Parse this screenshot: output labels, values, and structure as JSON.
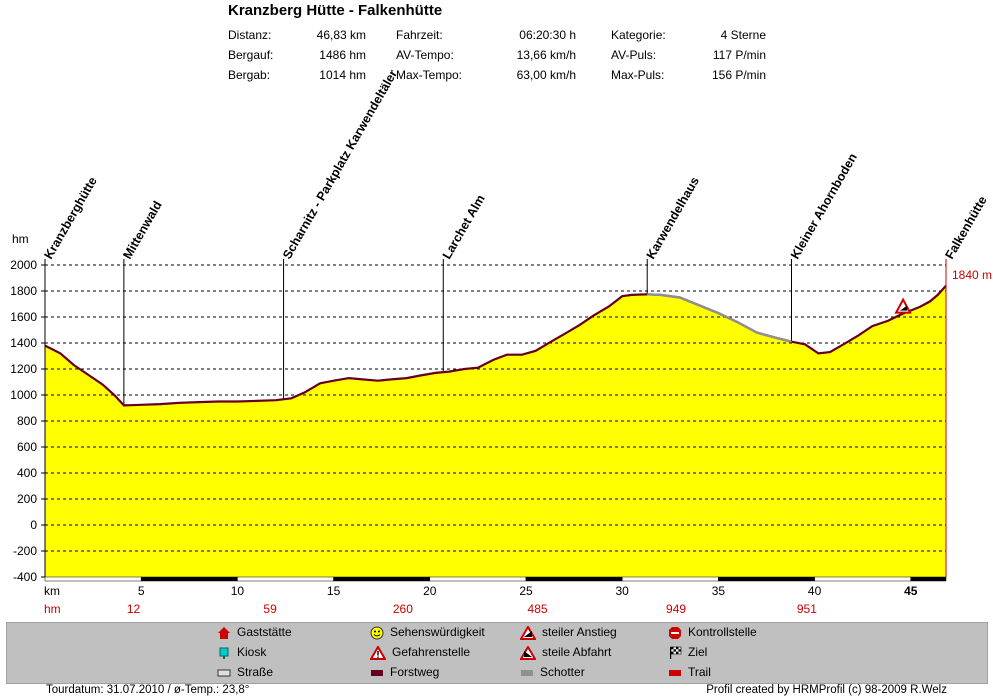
{
  "header": {
    "title": "Kranzberg Hütte - Falkenhütte",
    "stats": [
      {
        "label": "Distanz:",
        "value": "46,83 km"
      },
      {
        "label": "Bergauf:",
        "value": "1486 hm"
      },
      {
        "label": "Bergab:",
        "value": "1014 hm"
      },
      {
        "label": "Fahrzeit:",
        "value": "06:20:30 h"
      },
      {
        "label": "AV-Tempo:",
        "value": "13,66 km/h"
      },
      {
        "label": "Max-Tempo:",
        "value": "63,00 km/h"
      },
      {
        "label": "Kategorie:",
        "value": "4 Sterne"
      },
      {
        "label": "AV-Puls:",
        "value": "117 P/min"
      },
      {
        "label": "Max-Puls:",
        "value": "156 P/min"
      }
    ]
  },
  "chart_data": {
    "type": "area",
    "ylabel": "hm",
    "xlabel": "km",
    "xlim": [
      0,
      46.83
    ],
    "ylim": [
      -400,
      2000
    ],
    "ytick_values": [
      2000,
      1800,
      1600,
      1400,
      1200,
      1000,
      800,
      600,
      400,
      200,
      0,
      -200,
      -400
    ],
    "ytick_labels": [
      "2000",
      "1800",
      "1600",
      "1400",
      "1200",
      "1000",
      "800",
      "600",
      "400",
      "200",
      "0",
      "-200",
      "-400"
    ],
    "xtick_values": [
      5,
      10,
      15,
      20,
      25,
      30,
      35,
      40,
      45
    ],
    "xtick_labels": [
      "5",
      "10",
      "15",
      "20",
      "25",
      "30",
      "35",
      "40",
      "45"
    ],
    "grid": true,
    "end_value_label": "1840 m",
    "fill_color": "#ffff00",
    "line_color": "#660022",
    "gravel_color": "#909090",
    "x": [
      0,
      0.8,
      1.5,
      2.3,
      3.0,
      3.6,
      4.1,
      5,
      6,
      7,
      8,
      9,
      10,
      11,
      12,
      12.8,
      13.5,
      14.3,
      15,
      15.8,
      16.5,
      17.3,
      18,
      18.8,
      19.5,
      20.3,
      21,
      21.8,
      22.5,
      23.3,
      24,
      24.8,
      25.5,
      26.3,
      27,
      27.8,
      28.5,
      29.3,
      30,
      30.5,
      31.3,
      32,
      33,
      34,
      35,
      36,
      37,
      38,
      38.8,
      39.5,
      40.2,
      40.8,
      41.5,
      42.3,
      43,
      43.8,
      44.5,
      45,
      45.5,
      46,
      46.4,
      46.83
    ],
    "y": [
      1380,
      1320,
      1230,
      1150,
      1080,
      1000,
      920,
      925,
      930,
      940,
      945,
      950,
      950,
      955,
      960,
      975,
      1020,
      1090,
      1110,
      1130,
      1120,
      1110,
      1120,
      1130,
      1150,
      1170,
      1180,
      1200,
      1210,
      1270,
      1310,
      1310,
      1340,
      1410,
      1470,
      1540,
      1610,
      1680,
      1760,
      1770,
      1775,
      1770,
      1750,
      1690,
      1630,
      1560,
      1480,
      1440,
      1410,
      1390,
      1320,
      1330,
      1390,
      1460,
      1530,
      1570,
      1620,
      1650,
      1680,
      1720,
      1770,
      1840
    ],
    "gravel_segments": [
      [
        31.3,
        38.8
      ]
    ],
    "waypoints": [
      {
        "name": "Kranzberghütte",
        "km": 0
      },
      {
        "name": "Mittenwald",
        "km": 4.1
      },
      {
        "name": "Scharnitz - Parkplatz Karwendeltäler",
        "km": 12.4
      },
      {
        "name": "Larchet Alm",
        "km": 20.7
      },
      {
        "name": "Karwendelhaus",
        "km": 31.3
      },
      {
        "name": "Kleiner Ahornboden",
        "km": 38.8
      },
      {
        "name": "Falkenhütte",
        "km": 46.83
      }
    ],
    "hazard_marker_km": 44.6,
    "hm_row": [
      {
        "km": 4.6,
        "label": "12"
      },
      {
        "km": 11.7,
        "label": "59"
      },
      {
        "km": 18.6,
        "label": "260"
      },
      {
        "km": 25.6,
        "label": "485"
      },
      {
        "km": 32.8,
        "label": "949"
      },
      {
        "km": 39.6,
        "label": "951"
      }
    ],
    "km_row_label": "km",
    "hm_row_label": "hm"
  },
  "legend": {
    "items": [
      {
        "label": "Gaststätte",
        "icon": "house-icon",
        "color": "#cc0000"
      },
      {
        "label": "Kiosk",
        "icon": "kiosk-icon",
        "color": "#00cccc"
      },
      {
        "label": "Straße",
        "icon": "road-swatch",
        "color": "#e0e0e0"
      },
      {
        "label": "Sehenswürdigkeit",
        "icon": "smiley-icon",
        "color": "#ffff00"
      },
      {
        "label": "Gefahrenstelle",
        "icon": "warning-icon",
        "color": "#cc0000"
      },
      {
        "label": "Forstweg",
        "icon": "forest-road-swatch",
        "color": "#660022"
      },
      {
        "label": "steiler Anstieg",
        "icon": "steep-climb-icon",
        "color": "#cc0000"
      },
      {
        "label": "steile Abfahrt",
        "icon": "steep-descent-icon",
        "color": "#cc0000"
      },
      {
        "label": "Schotter",
        "icon": "gravel-swatch",
        "color": "#909090"
      },
      {
        "label": "Kontrollstelle",
        "icon": "stop-icon",
        "color": "#cc0000"
      },
      {
        "label": "Ziel",
        "icon": "finish-flag-icon",
        "color": "#000000"
      },
      {
        "label": "Trail",
        "icon": "trail-swatch",
        "color": "#cc0000"
      }
    ]
  },
  "footer": {
    "left": "Tourdatum: 31.07.2010  /  ø-Temp.: 23,8°",
    "right": "Profil created by HRMProfil (c) 98-2009 R.Welz"
  }
}
